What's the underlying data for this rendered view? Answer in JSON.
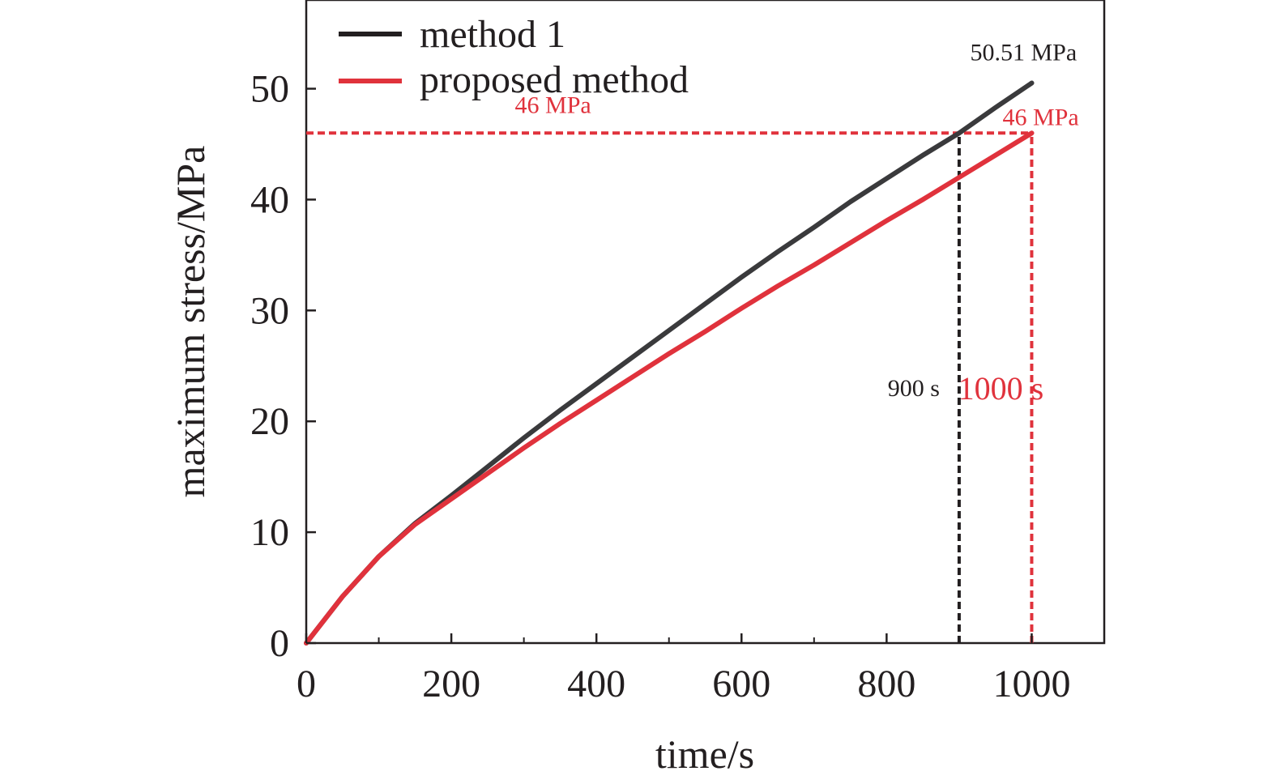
{
  "chart_data": {
    "type": "line",
    "xlabel": "time/s",
    "ylabel": "maximum stress/MPa",
    "xlim": [
      0,
      1100
    ],
    "ylim": [
      0,
      58
    ],
    "x_ticks": [
      0,
      200,
      400,
      600,
      800,
      1000
    ],
    "y_ticks": [
      0,
      10,
      20,
      30,
      40,
      50
    ],
    "grid": false,
    "legend_position": "top-left",
    "series": [
      {
        "name": "method 1",
        "color": "#3a3a3c",
        "x": [
          0,
          50,
          100,
          150,
          200,
          250,
          300,
          350,
          400,
          450,
          500,
          550,
          600,
          650,
          700,
          750,
          800,
          850,
          900,
          950,
          1000
        ],
        "y": [
          0,
          4.2,
          7.8,
          10.8,
          13.3,
          15.9,
          18.5,
          21.0,
          23.4,
          25.8,
          28.2,
          30.6,
          33.0,
          35.3,
          37.5,
          39.8,
          41.9,
          44.0,
          46.0,
          48.3,
          50.51
        ]
      },
      {
        "name": "proposed method",
        "color": "#e0323c",
        "x": [
          0,
          50,
          100,
          150,
          200,
          250,
          300,
          350,
          400,
          450,
          500,
          550,
          600,
          650,
          700,
          750,
          800,
          850,
          900,
          950,
          1000
        ],
        "y": [
          0,
          4.2,
          7.8,
          10.7,
          13.0,
          15.3,
          17.6,
          19.8,
          21.9,
          24.0,
          26.1,
          28.1,
          30.2,
          32.2,
          34.1,
          36.1,
          38.1,
          40.0,
          42.0,
          44.0,
          46.0
        ]
      }
    ],
    "reference_lines": [
      {
        "kind": "horizontal",
        "y": 46,
        "x_from": 0,
        "x_to": 1000,
        "color": "#e0323c"
      },
      {
        "kind": "vertical",
        "x": 900,
        "y_from": 0,
        "y_to": 46,
        "color": "#231f20"
      },
      {
        "kind": "vertical",
        "x": 1000,
        "y_from": 0,
        "y_to": 46,
        "color": "#e0323c"
      }
    ],
    "annotations": [
      {
        "id": "a1",
        "text": "50.51 MPa",
        "x": 1000,
        "y": 50.51,
        "color": "#231f20"
      },
      {
        "id": "a2",
        "text": "46 MPa",
        "x": 1000,
        "y": 46,
        "color": "#e0323c"
      },
      {
        "id": "a3",
        "text": "46 MPa",
        "x": 300,
        "y": 46,
        "color": "#e0323c"
      },
      {
        "id": "a4",
        "text": "900 s",
        "x": 900,
        "y": 23,
        "color": "#231f20"
      },
      {
        "id": "a5",
        "text": "1000 s",
        "x": 1000,
        "y": 23,
        "color": "#e0323c"
      }
    ]
  }
}
